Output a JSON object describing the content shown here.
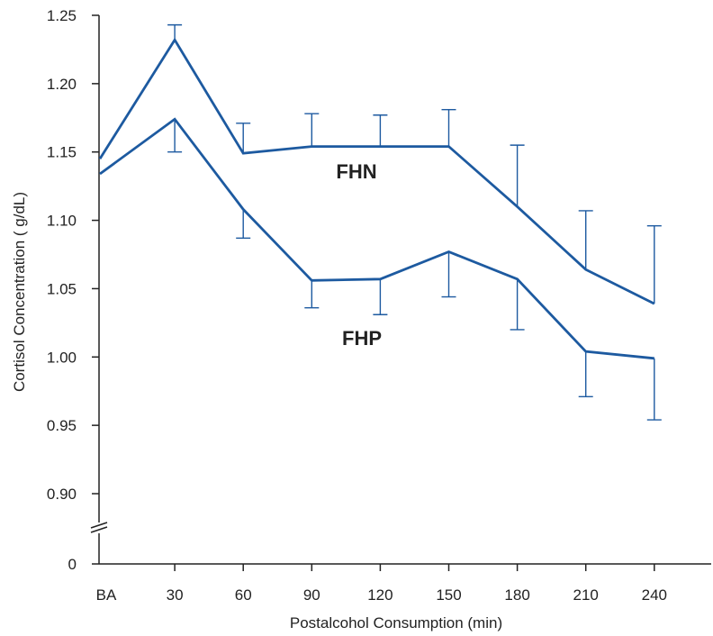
{
  "chart_data": {
    "type": "line",
    "xlabel": "Postalcohol Consumption (min)",
    "ylabel": "Cortisol Concentration (  g/dL)",
    "categories": [
      "BA",
      "30",
      "60",
      "90",
      "120",
      "150",
      "180",
      "210",
      "240"
    ],
    "yticks": [
      "1.25",
      "1.20",
      "1.15",
      "1.10",
      "1.05",
      "1.00",
      "0.95",
      "0.90",
      "0"
    ],
    "ylim": [
      0.9,
      1.25
    ],
    "axis_break": true,
    "grid": false,
    "line_color": "#1d5aa0",
    "series": [
      {
        "name": "FHN",
        "values": [
          1.145,
          1.232,
          1.149,
          1.154,
          1.154,
          1.154,
          1.11,
          1.064,
          1.039
        ],
        "errors_upper": [
          null,
          1.243,
          1.171,
          1.178,
          1.177,
          1.181,
          1.155,
          1.107,
          1.096
        ]
      },
      {
        "name": "FHP",
        "values": [
          1.134,
          1.174,
          1.108,
          1.056,
          1.057,
          1.077,
          1.057,
          1.004,
          0.999
        ],
        "errors_lower": [
          null,
          1.15,
          1.087,
          1.036,
          1.031,
          1.044,
          1.02,
          0.971,
          0.954
        ]
      }
    ]
  }
}
